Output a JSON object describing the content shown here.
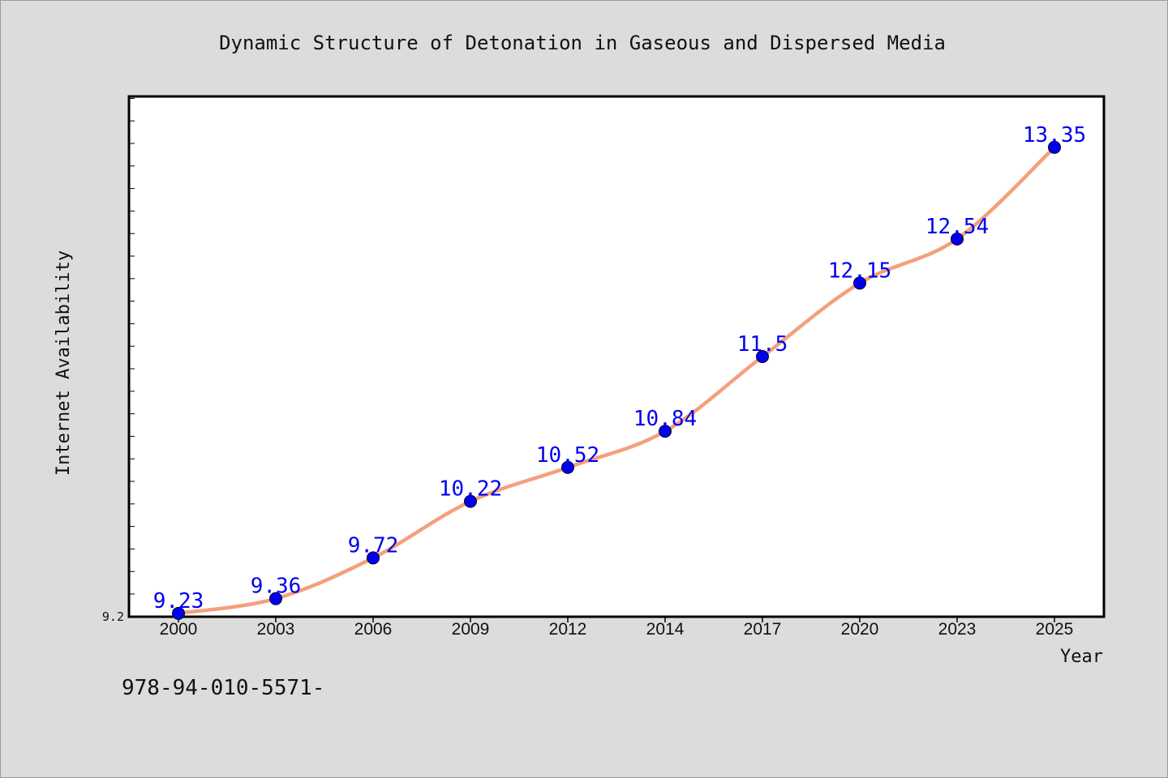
{
  "chart_data": {
    "type": "line",
    "title": "Dynamic Structure of Detonation in Gaseous and Dispersed Media",
    "xlabel": "Year",
    "ylabel": "Internet Availability",
    "categories": [
      "2000",
      "2003",
      "2006",
      "2009",
      "2012",
      "2014",
      "2017",
      "2020",
      "2023",
      "2025"
    ],
    "series": [
      {
        "values": [
          9.23,
          9.36,
          9.72,
          10.22,
          10.52,
          10.84,
          11.5,
          12.15,
          12.54,
          13.35
        ],
        "data_labels": [
          "9.23",
          "9.36",
          "9.72",
          "10.22",
          "10.52",
          "10.84",
          "11.5",
          "12.15",
          "12.54",
          "13.35"
        ]
      }
    ],
    "ylim": [
      9.2,
      13.8
    ],
    "y_tick_labels": [
      "9.2"
    ],
    "grid": false,
    "legend": "none",
    "colors": {
      "line": "#f4a07c",
      "marker": "#0000ee",
      "data_label": "#0000ee",
      "plot_background": "#ffffff",
      "page_background": "#dcdcdc"
    }
  },
  "caption": "978-94-010-5571-"
}
